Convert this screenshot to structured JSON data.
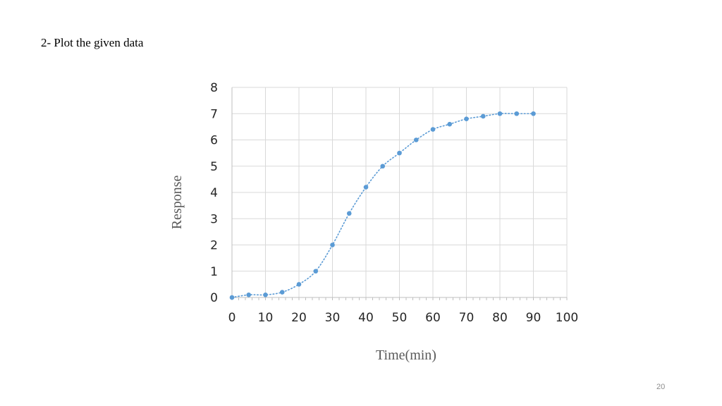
{
  "slide": {
    "heading": "2- Plot the given data",
    "page_number": "20"
  },
  "chart_data": {
    "type": "scatter",
    "title": "",
    "xlabel": "Time(min)",
    "ylabel": "Response",
    "xlim": [
      0,
      100
    ],
    "ylim": [
      0,
      8
    ],
    "x_ticks": [
      "0",
      "10",
      "20",
      "30",
      "40",
      "50",
      "60",
      "70",
      "80",
      "90",
      "100"
    ],
    "y_ticks": [
      "0",
      "1",
      "2",
      "3",
      "4",
      "5",
      "6",
      "7",
      "8"
    ],
    "grid": true,
    "legend": "none",
    "trendline": "dotted polynomial",
    "colors": {
      "points": "#5b9bd5",
      "trendline": "#5b9bd5",
      "grid": "#d9d9d9",
      "axis": "#bfbfbf"
    },
    "series": [
      {
        "x": [
          0,
          5,
          10,
          15,
          20,
          25,
          30,
          35,
          40,
          45,
          50,
          55,
          60,
          65,
          70,
          75,
          80,
          85,
          90
        ],
        "y": [
          0,
          0.1,
          0.1,
          0.2,
          0.5,
          1.0,
          2.0,
          3.2,
          4.2,
          5.0,
          5.5,
          6.0,
          6.4,
          6.6,
          6.8,
          6.9,
          7.0,
          7.0,
          7.0
        ]
      }
    ]
  }
}
